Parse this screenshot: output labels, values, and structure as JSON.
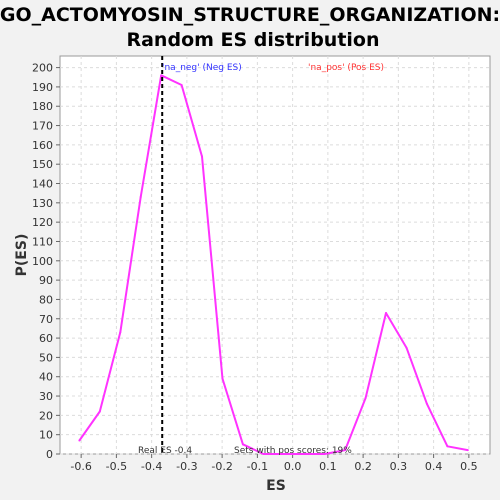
{
  "chart_data": {
    "type": "line",
    "title_line1": "GO_ACTOMYOSIN_STRUCTURE_ORGANIZATION:",
    "title_line2": "Random ES distribution",
    "xlabel": "ES",
    "ylabel": "P(ES)",
    "xlim": [
      -0.66,
      0.56
    ],
    "ylim": [
      0,
      206
    ],
    "xticks": [
      -0.6,
      -0.5,
      -0.4,
      -0.3,
      -0.2,
      -0.1,
      0.0,
      0.1,
      0.2,
      0.3,
      0.4,
      0.5
    ],
    "xtick_labels": [
      "-0.6",
      "-0.5",
      "-0.4",
      "-0.3",
      "-0.2",
      "-0.1",
      "0.0",
      "0.1",
      "0.2",
      "0.3",
      "0.4",
      "0.5"
    ],
    "yticks": [
      0,
      10,
      20,
      30,
      40,
      50,
      60,
      70,
      80,
      90,
      100,
      110,
      120,
      130,
      140,
      150,
      160,
      170,
      180,
      190,
      200
    ],
    "grid": true,
    "series": [
      {
        "color": "#ff33ff",
        "x": [
          -0.605,
          -0.547,
          -0.489,
          -0.431,
          -0.373,
          -0.315,
          -0.257,
          -0.199,
          -0.141,
          -0.083,
          -0.025,
          0.033,
          0.091,
          0.149,
          0.207,
          0.265,
          0.323,
          0.381,
          0.439,
          0.497
        ],
        "y": [
          7,
          22,
          63,
          133,
          196,
          191,
          154,
          39,
          5,
          0,
          0,
          0,
          0,
          2,
          29,
          73,
          55,
          26,
          4,
          2
        ]
      }
    ],
    "real_es_line": {
      "x": -0.37,
      "color": "#000000",
      "style": "dashed"
    },
    "annotations": {
      "neg_label": "'na_neg' (Neg ES)",
      "neg_color": "#3333ff",
      "pos_label": "'na_pos' (Pos ES)",
      "pos_color": "#ff3333",
      "real_es": "Real ES -0.4",
      "pos_scores": "Sets with pos scores: 19%"
    }
  }
}
